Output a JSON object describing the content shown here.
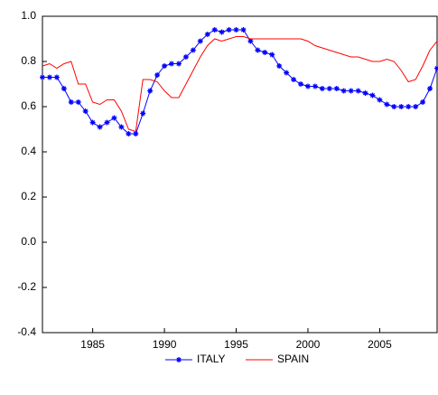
{
  "chart_data": {
    "type": "line",
    "x": [
      1981.5,
      1982,
      1982.5,
      1983,
      1983.5,
      1984,
      1984.5,
      1985,
      1985.5,
      1986,
      1986.5,
      1987,
      1987.5,
      1988,
      1988.5,
      1989,
      1989.5,
      1990,
      1990.5,
      1991,
      1991.5,
      1992,
      1992.5,
      1993,
      1993.5,
      1994,
      1994.5,
      1995,
      1995.5,
      1996,
      1996.5,
      1997,
      1997.5,
      1998,
      1998.5,
      1999,
      1999.5,
      2000,
      2000.5,
      2001,
      2001.5,
      2002,
      2002.5,
      2003,
      2003.5,
      2004,
      2004.5,
      2005,
      2005.5,
      2006,
      2006.5,
      2007,
      2007.5,
      2008,
      2008.5,
      2009
    ],
    "series": [
      {
        "name": "ITALY",
        "color": "#0000ff",
        "marker": "star",
        "values": [
          0.73,
          0.73,
          0.73,
          0.68,
          0.62,
          0.62,
          0.58,
          0.53,
          0.51,
          0.53,
          0.55,
          0.51,
          0.48,
          0.48,
          0.57,
          0.67,
          0.74,
          0.78,
          0.79,
          0.79,
          0.82,
          0.85,
          0.89,
          0.92,
          0.94,
          0.93,
          0.94,
          0.94,
          0.94,
          0.89,
          0.85,
          0.84,
          0.83,
          0.78,
          0.75,
          0.72,
          0.7,
          0.69,
          0.69,
          0.68,
          0.68,
          0.68,
          0.67,
          0.67,
          0.67,
          0.66,
          0.65,
          0.63,
          0.61,
          0.6,
          0.6,
          0.6,
          0.6,
          0.62,
          0.68,
          0.77
        ]
      },
      {
        "name": "SPAIN",
        "color": "#ff0000",
        "values": [
          0.78,
          0.79,
          0.77,
          0.79,
          0.8,
          0.7,
          0.7,
          0.62,
          0.61,
          0.63,
          0.63,
          0.58,
          0.5,
          0.49,
          0.72,
          0.72,
          0.71,
          0.67,
          0.64,
          0.64,
          0.7,
          0.76,
          0.82,
          0.87,
          0.9,
          0.89,
          0.9,
          0.91,
          0.91,
          0.9,
          0.9,
          0.9,
          0.9,
          0.9,
          0.9,
          0.9,
          0.9,
          0.89,
          0.87,
          0.86,
          0.85,
          0.84,
          0.83,
          0.82,
          0.82,
          0.81,
          0.8,
          0.8,
          0.81,
          0.8,
          0.76,
          0.71,
          0.72,
          0.78,
          0.85,
          0.89
        ]
      }
    ],
    "xlim": [
      1981.5,
      2009
    ],
    "xticks": [
      1985,
      1990,
      1995,
      2000,
      2005
    ],
    "ylim": [
      -0.4,
      1.0
    ],
    "yticks": [
      -0.4,
      -0.2,
      {
        "value": 0,
        "label": "0.0"
      },
      0.2,
      0.4,
      0.6,
      0.8,
      {
        "value": 1,
        "label": "1.0"
      }
    ],
    "legend": "bottom"
  }
}
